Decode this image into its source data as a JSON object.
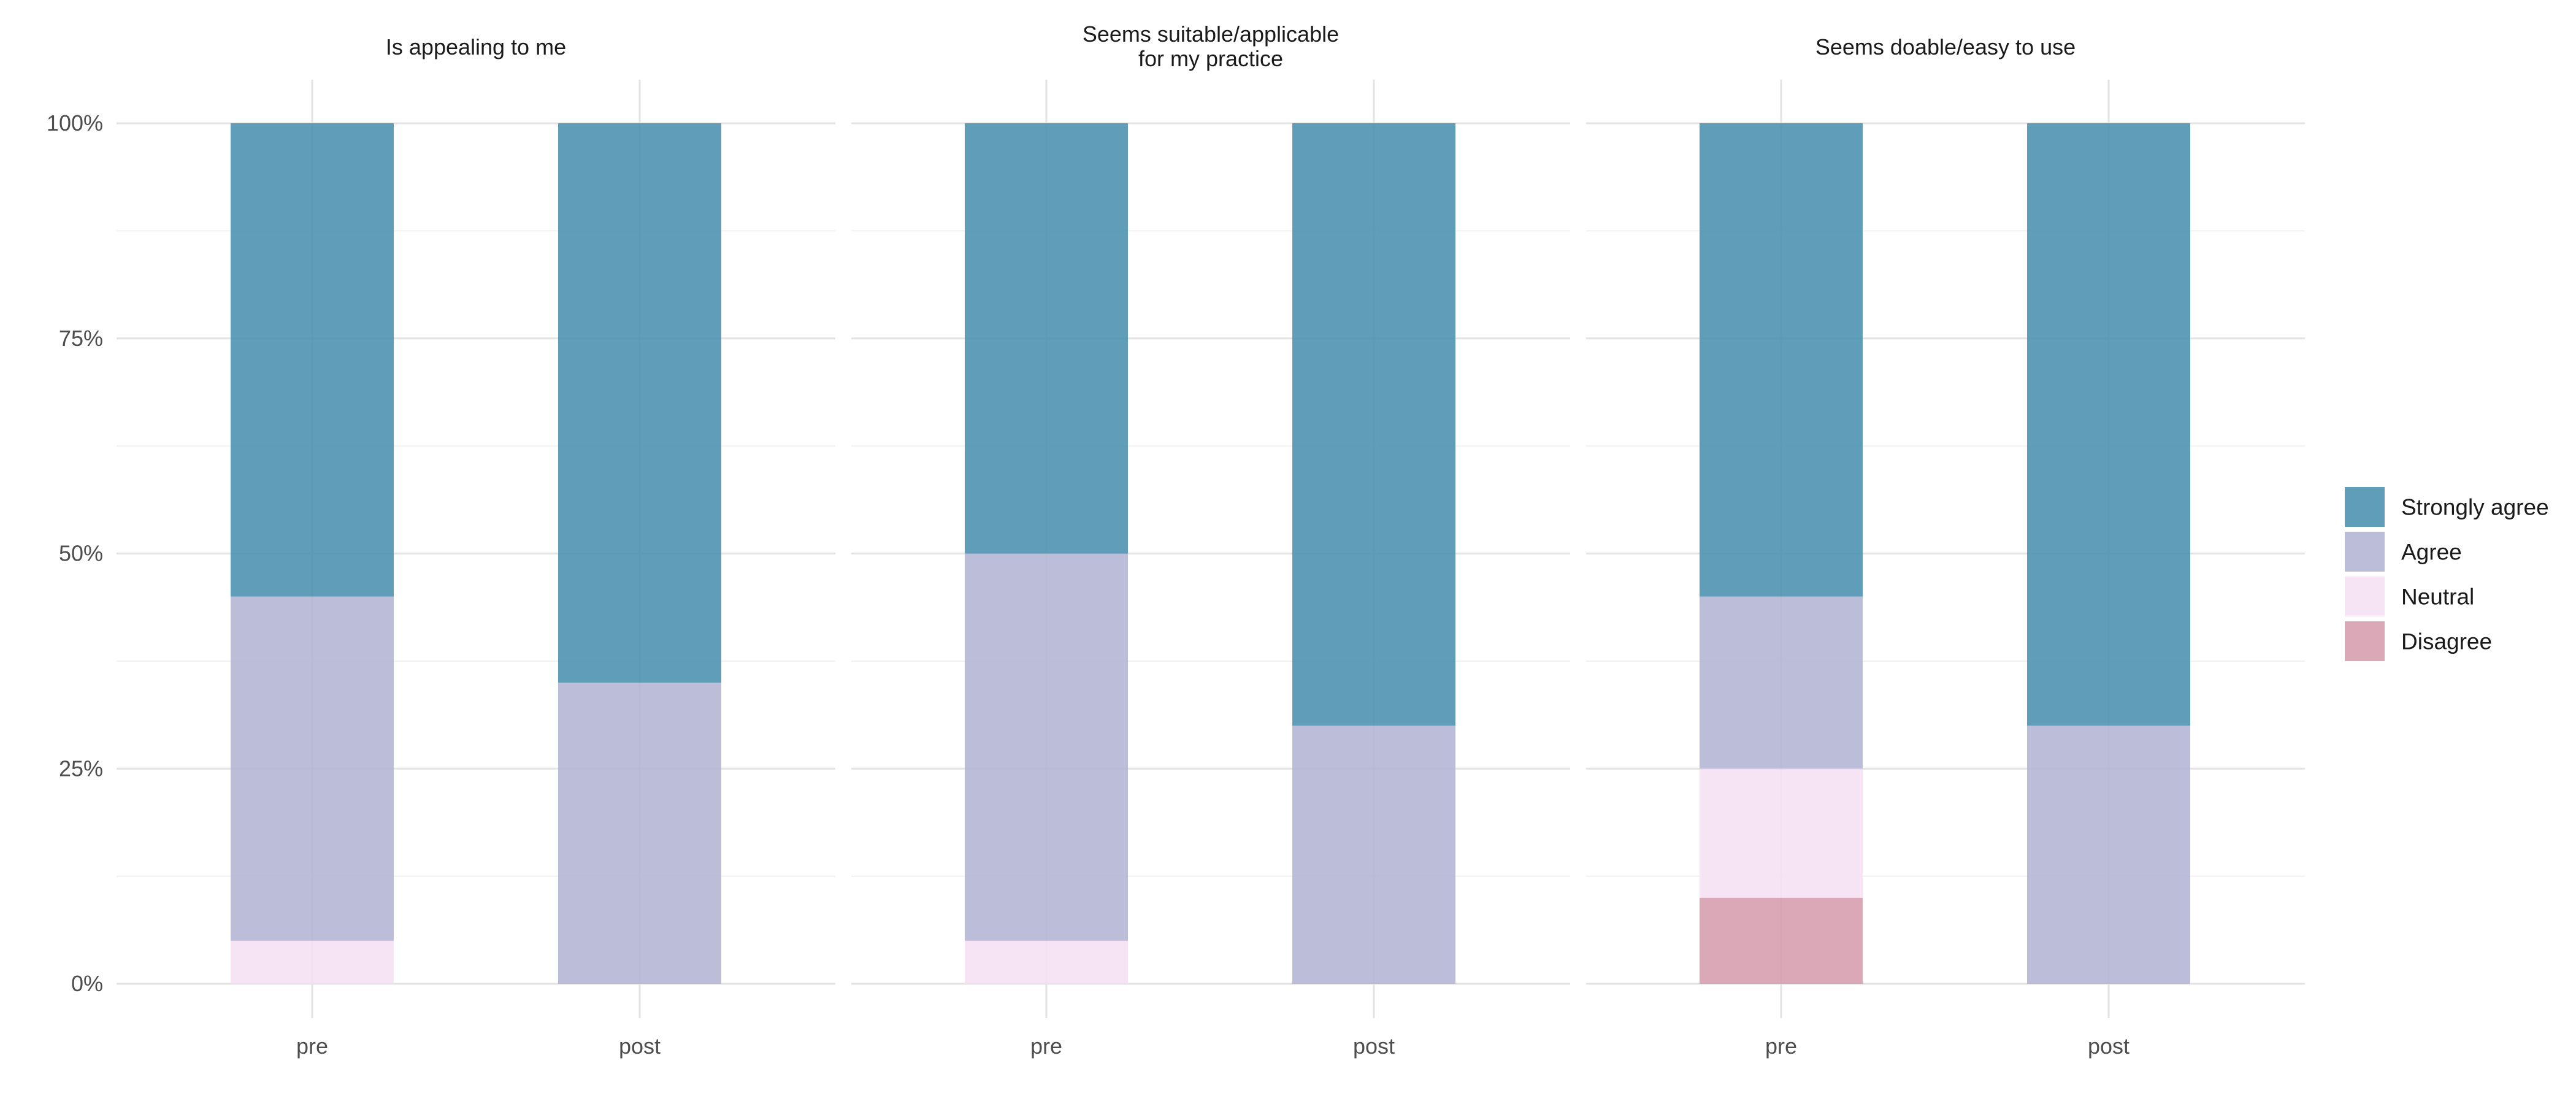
{
  "chart_data": {
    "type": "bar",
    "stacked": true,
    "categories": [
      "pre",
      "post"
    ],
    "y_tick_labels": [
      "0%",
      "25%",
      "50%",
      "75%",
      "100%"
    ],
    "ylim": [
      0,
      100
    ],
    "grid": true,
    "legend_position": "right",
    "legend_order": [
      "Strongly agree",
      "Agree",
      "Neutral",
      "Disagree"
    ],
    "stack_order": [
      "Disagree",
      "Neutral",
      "Agree",
      "Strongly agree"
    ],
    "colors": {
      "Strongly agree": "#4a8fae",
      "Agree": "#b3b4d4",
      "Neutral": "#f5e0f4",
      "Disagree": "#d69cad"
    },
    "panels": [
      {
        "title": "Is appealing to me",
        "series": [
          {
            "name": "Disagree",
            "values": [
              0,
              0
            ]
          },
          {
            "name": "Neutral",
            "values": [
              5,
              0
            ]
          },
          {
            "name": "Agree",
            "values": [
              40,
              35
            ]
          },
          {
            "name": "Strongly agree",
            "values": [
              55,
              65
            ]
          }
        ]
      },
      {
        "title": "Seems suitable/applicable\nfor my practice",
        "series": [
          {
            "name": "Disagree",
            "values": [
              0,
              0
            ]
          },
          {
            "name": "Neutral",
            "values": [
              5,
              0
            ]
          },
          {
            "name": "Agree",
            "values": [
              45,
              30
            ]
          },
          {
            "name": "Strongly agree",
            "values": [
              50,
              70
            ]
          }
        ]
      },
      {
        "title": "Seems doable/easy to use",
        "series": [
          {
            "name": "Disagree",
            "values": [
              10,
              0
            ]
          },
          {
            "name": "Neutral",
            "values": [
              15,
              0
            ]
          },
          {
            "name": "Agree",
            "values": [
              20,
              30
            ]
          },
          {
            "name": "Strongly agree",
            "values": [
              55,
              70
            ]
          }
        ]
      }
    ]
  }
}
